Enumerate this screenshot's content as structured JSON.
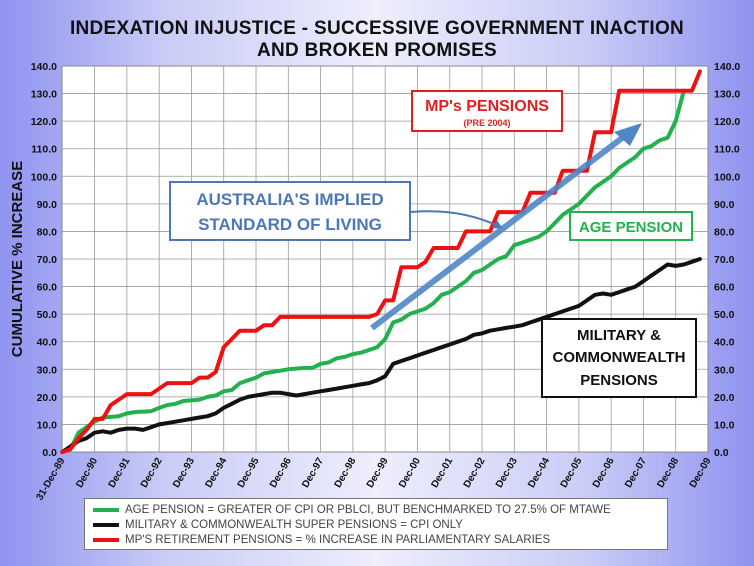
{
  "title_line1": "INDEXATION INJUSTICE - SUCCESSIVE GOVERNMENT INACTION",
  "title_line2": "AND BROKEN PROMISES",
  "chart_data": {
    "type": "line",
    "ylabel": "CUMULATIVE % INCREASE",
    "ylim": [
      0,
      140
    ],
    "ytick_step": 10,
    "ytick_labels": [
      "0.0",
      "10.0",
      "20.0",
      "30.0",
      "40.0",
      "50.0",
      "60.0",
      "70.0",
      "80.0",
      "90.0",
      "100.0",
      "110.0",
      "120.0",
      "130.0",
      "140.0"
    ],
    "x_range_years": [
      1989.99,
      2010.0
    ],
    "x_tick_labels": [
      "31-Dec-89",
      "Dec-90",
      "Dec-91",
      "Dec-92",
      "Dec-93",
      "Dec-94",
      "Dec-95",
      "Dec-96",
      "Dec-97",
      "Dec-98",
      "Dec-99",
      "Dec-00",
      "Dec-01",
      "Dec-02",
      "Dec-03",
      "Dec-04",
      "Dec-05",
      "Dec-06",
      "Dec-07",
      "Dec-08",
      "Dec-09"
    ],
    "grid": true,
    "series": [
      {
        "name": "AGE PENSION = GREATER OF CPI OR PBLCI, BUT BENCHMARKED TO 27.5% OF MTAWE",
        "color": "#22b14c",
        "points": [
          [
            1990.0,
            0
          ],
          [
            1990.25,
            1
          ],
          [
            1990.5,
            7
          ],
          [
            1990.75,
            9
          ],
          [
            1991.0,
            11
          ],
          [
            1991.25,
            12.5
          ],
          [
            1991.75,
            13
          ],
          [
            1992.0,
            14
          ],
          [
            1992.25,
            14.5
          ],
          [
            1992.75,
            14.8
          ],
          [
            1993.0,
            16
          ],
          [
            1993.25,
            17
          ],
          [
            1993.5,
            17.5
          ],
          [
            1993.75,
            18.5
          ],
          [
            1994.25,
            19
          ],
          [
            1994.5,
            20
          ],
          [
            1994.75,
            20.5
          ],
          [
            1995.0,
            22
          ],
          [
            1995.25,
            22.5
          ],
          [
            1995.5,
            25
          ],
          [
            1995.75,
            26
          ],
          [
            1996.0,
            27
          ],
          [
            1996.25,
            28.5
          ],
          [
            1996.5,
            29
          ],
          [
            1996.75,
            29.5
          ],
          [
            1997.0,
            30
          ],
          [
            1997.5,
            30.5
          ],
          [
            1997.75,
            30.5
          ],
          [
            1998.0,
            32
          ],
          [
            1998.25,
            32.5
          ],
          [
            1998.5,
            34
          ],
          [
            1998.75,
            34.5
          ],
          [
            1999.0,
            35.5
          ],
          [
            1999.25,
            36
          ],
          [
            1999.5,
            37
          ],
          [
            1999.75,
            38
          ],
          [
            2000.0,
            41
          ],
          [
            2000.25,
            47
          ],
          [
            2000.5,
            48
          ],
          [
            2000.75,
            50
          ],
          [
            2001.0,
            51
          ],
          [
            2001.25,
            52
          ],
          [
            2001.5,
            54
          ],
          [
            2001.75,
            57
          ],
          [
            2002.0,
            58
          ],
          [
            2002.25,
            60
          ],
          [
            2002.5,
            62
          ],
          [
            2002.75,
            65
          ],
          [
            2003.0,
            66
          ],
          [
            2003.25,
            68
          ],
          [
            2003.5,
            70
          ],
          [
            2003.75,
            71
          ],
          [
            2004.0,
            75
          ],
          [
            2004.25,
            76
          ],
          [
            2004.5,
            77
          ],
          [
            2004.75,
            78
          ],
          [
            2005.0,
            80
          ],
          [
            2005.25,
            83
          ],
          [
            2005.5,
            86
          ],
          [
            2005.75,
            88
          ],
          [
            2006.0,
            90
          ],
          [
            2006.25,
            93
          ],
          [
            2006.5,
            96
          ],
          [
            2006.75,
            98
          ],
          [
            2007.0,
            100
          ],
          [
            2007.25,
            103
          ],
          [
            2007.5,
            105
          ],
          [
            2007.75,
            107
          ],
          [
            2008.0,
            110
          ],
          [
            2008.25,
            111
          ],
          [
            2008.5,
            113
          ],
          [
            2008.75,
            114
          ],
          [
            2009.0,
            120
          ],
          [
            2009.25,
            131
          ]
        ]
      },
      {
        "name": "MILITARY & COMMONWEALTH SUPER PENSIONS = CPI ONLY",
        "color": "#111111",
        "points": [
          [
            1990.0,
            0
          ],
          [
            1990.25,
            2
          ],
          [
            1990.5,
            4
          ],
          [
            1990.75,
            5
          ],
          [
            1991.0,
            7
          ],
          [
            1991.25,
            7.5
          ],
          [
            1991.5,
            7
          ],
          [
            1991.75,
            8
          ],
          [
            1992.0,
            8.5
          ],
          [
            1992.25,
            8.5
          ],
          [
            1992.5,
            8
          ],
          [
            1992.75,
            9
          ],
          [
            1993.0,
            10
          ],
          [
            1993.25,
            10.5
          ],
          [
            1993.5,
            11
          ],
          [
            1993.75,
            11.5
          ],
          [
            1994.0,
            12
          ],
          [
            1994.25,
            12.5
          ],
          [
            1994.5,
            13
          ],
          [
            1994.75,
            14
          ],
          [
            1995.0,
            16
          ],
          [
            1995.25,
            17.5
          ],
          [
            1995.5,
            19
          ],
          [
            1995.75,
            20
          ],
          [
            1996.0,
            20.5
          ],
          [
            1996.25,
            21
          ],
          [
            1996.5,
            21.5
          ],
          [
            1996.75,
            21.5
          ],
          [
            1997.0,
            21
          ],
          [
            1997.25,
            20.5
          ],
          [
            1997.5,
            21
          ],
          [
            1997.75,
            21.5
          ],
          [
            1998.0,
            22
          ],
          [
            1998.25,
            22.5
          ],
          [
            1998.5,
            23
          ],
          [
            1998.75,
            23.5
          ],
          [
            1999.0,
            24
          ],
          [
            1999.25,
            24.5
          ],
          [
            1999.5,
            25
          ],
          [
            1999.75,
            26
          ],
          [
            2000.0,
            27.5
          ],
          [
            2000.25,
            32
          ],
          [
            2000.5,
            33
          ],
          [
            2000.75,
            34
          ],
          [
            2001.0,
            35
          ],
          [
            2001.25,
            36
          ],
          [
            2001.5,
            37
          ],
          [
            2001.75,
            38
          ],
          [
            2002.0,
            39
          ],
          [
            2002.25,
            40
          ],
          [
            2002.5,
            41
          ],
          [
            2002.75,
            42.5
          ],
          [
            2003.0,
            43
          ],
          [
            2003.25,
            44
          ],
          [
            2003.5,
            44.5
          ],
          [
            2003.75,
            45
          ],
          [
            2004.0,
            45.5
          ],
          [
            2004.25,
            46
          ],
          [
            2004.5,
            47
          ],
          [
            2004.75,
            48
          ],
          [
            2005.0,
            49
          ],
          [
            2005.25,
            50
          ],
          [
            2005.5,
            51
          ],
          [
            2005.75,
            52
          ],
          [
            2006.0,
            53
          ],
          [
            2006.25,
            55
          ],
          [
            2006.5,
            57
          ],
          [
            2006.75,
            57.5
          ],
          [
            2007.0,
            57
          ],
          [
            2007.25,
            58
          ],
          [
            2007.5,
            59
          ],
          [
            2007.75,
            60
          ],
          [
            2008.0,
            62
          ],
          [
            2008.25,
            64
          ],
          [
            2008.5,
            66
          ],
          [
            2008.75,
            68
          ],
          [
            2009.0,
            67.5
          ],
          [
            2009.25,
            68
          ],
          [
            2009.5,
            69
          ],
          [
            2009.75,
            70
          ]
        ]
      },
      {
        "name": "MP'S RETIREMENT PENSIONS = % INCREASE IN PARLIAMENTARY SALARIES",
        "color": "#ee1111",
        "points": [
          [
            1990.0,
            0
          ],
          [
            1990.25,
            1
          ],
          [
            1990.5,
            5
          ],
          [
            1990.75,
            8
          ],
          [
            1991.0,
            12
          ],
          [
            1991.25,
            12
          ],
          [
            1991.5,
            17
          ],
          [
            1991.75,
            19
          ],
          [
            1992.0,
            21
          ],
          [
            1992.25,
            21
          ],
          [
            1992.5,
            21
          ],
          [
            1992.75,
            21
          ],
          [
            1993.0,
            23
          ],
          [
            1993.25,
            25
          ],
          [
            1993.5,
            25
          ],
          [
            1993.75,
            25
          ],
          [
            1994.0,
            25
          ],
          [
            1994.25,
            27
          ],
          [
            1994.5,
            27
          ],
          [
            1994.75,
            29
          ],
          [
            1995.0,
            38
          ],
          [
            1995.25,
            41
          ],
          [
            1995.5,
            44
          ],
          [
            1995.75,
            44
          ],
          [
            1996.0,
            44
          ],
          [
            1996.25,
            46
          ],
          [
            1996.5,
            46
          ],
          [
            1996.75,
            49
          ],
          [
            1997.0,
            49
          ],
          [
            1997.5,
            49
          ],
          [
            1998.0,
            49
          ],
          [
            1998.5,
            49
          ],
          [
            1999.0,
            49
          ],
          [
            1999.5,
            49
          ],
          [
            1999.75,
            50
          ],
          [
            2000.0,
            55
          ],
          [
            2000.25,
            55
          ],
          [
            2000.5,
            67
          ],
          [
            2000.75,
            67
          ],
          [
            2001.0,
            67
          ],
          [
            2001.25,
            69
          ],
          [
            2001.5,
            74
          ],
          [
            2001.75,
            74
          ],
          [
            2002.0,
            74
          ],
          [
            2002.25,
            74
          ],
          [
            2002.5,
            80
          ],
          [
            2002.75,
            80
          ],
          [
            2003.0,
            80
          ],
          [
            2003.25,
            80
          ],
          [
            2003.5,
            87
          ],
          [
            2003.75,
            87
          ],
          [
            2004.0,
            87
          ],
          [
            2004.25,
            87
          ],
          [
            2004.5,
            94
          ],
          [
            2004.75,
            94
          ],
          [
            2005.0,
            94
          ],
          [
            2005.25,
            94
          ],
          [
            2005.5,
            102
          ],
          [
            2005.75,
            102
          ],
          [
            2006.0,
            102
          ],
          [
            2006.25,
            102
          ],
          [
            2006.5,
            116
          ],
          [
            2006.75,
            116
          ],
          [
            2007.0,
            116
          ],
          [
            2007.25,
            131
          ],
          [
            2007.5,
            131
          ],
          [
            2007.75,
            131
          ],
          [
            2008.0,
            131
          ],
          [
            2008.25,
            131
          ],
          [
            2008.5,
            131
          ],
          [
            2008.75,
            131
          ],
          [
            2009.0,
            131
          ],
          [
            2009.25,
            131
          ],
          [
            2009.5,
            131
          ],
          [
            2009.75,
            138
          ]
        ]
      }
    ],
    "annotations": {
      "mp_line1": "MP's PENSIONS",
      "mp_line2": "(PRE 2004)",
      "implied_line1": "AUSTRALIA'S IMPLIED",
      "implied_line2": "STANDARD OF LIVING",
      "age_pension": "AGE PENSION",
      "military_line1": "MILITARY &",
      "military_line2": "COMMONWEALTH",
      "military_line3": "PENSIONS"
    }
  },
  "legend": [
    {
      "label": "AGE PENSION = GREATER OF CPI OR PBLCI, BUT BENCHMARKED TO 27.5% OF MTAWE",
      "color": "#22b14c"
    },
    {
      "label": "MILITARY & COMMONWEALTH SUPER PENSIONS = CPI ONLY",
      "color": "#111111"
    },
    {
      "label": "MP'S RETIREMENT PENSIONS = % INCREASE IN PARLIAMENTARY SALARIES",
      "color": "#ee1111"
    }
  ]
}
